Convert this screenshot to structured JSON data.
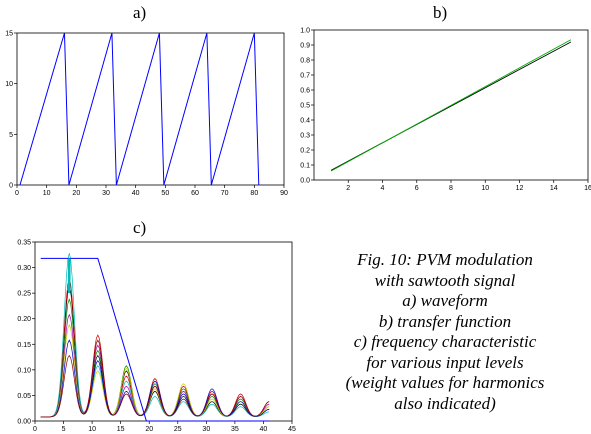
{
  "labels": {
    "a": "a)",
    "b": "b)",
    "c": "c)"
  },
  "caption": [
    "Fig. 10: PVM modulation",
    "with sawtooth signal",
    "a) waveform",
    "b) transfer function",
    "c) frequency characteristic",
    "for various input levels",
    "(weight values for harmonics",
    "also indicated)"
  ],
  "chart_data": [
    {
      "id": "a",
      "type": "line",
      "title": "a)",
      "xlim": [
        0,
        90
      ],
      "ylim": [
        0,
        15
      ],
      "xticks": [
        0,
        10,
        20,
        30,
        40,
        50,
        60,
        70,
        80,
        90
      ],
      "yticks": [
        0,
        5,
        10,
        15
      ],
      "series": [
        {
          "color": "#0000ff",
          "x": [
            1,
            16,
            17.5,
            32,
            33.5,
            48,
            49.5,
            64,
            65.5,
            80,
            81.5
          ],
          "y": [
            0,
            15,
            0,
            15,
            0,
            15,
            0,
            15,
            0,
            15,
            0
          ]
        }
      ]
    },
    {
      "id": "b",
      "type": "line",
      "title": "b)",
      "xlim": [
        0,
        16
      ],
      "ylim": [
        0,
        1.0
      ],
      "xticks": [
        2,
        4,
        6,
        8,
        10,
        12,
        14,
        16
      ],
      "xticklabels": [
        "2",
        "4",
        "6",
        "8",
        "10",
        "12",
        "14",
        "16"
      ],
      "yticks": [
        0,
        0.1,
        0.2,
        0.3,
        0.4,
        0.5,
        0.6,
        0.7,
        0.8,
        0.9,
        1.0
      ],
      "yticklabels": [
        "0.0",
        "0.1",
        "0.2",
        "0.3",
        "0.4",
        "0.5",
        "0.6",
        "0.7",
        "0.8",
        "0.9",
        "1.0"
      ],
      "series": [
        {
          "color": "#000000",
          "x": [
            1,
            15
          ],
          "y": [
            0.065,
            0.92
          ]
        },
        {
          "color": "#00aa00",
          "x": [
            1,
            15
          ],
          "y": [
            0.06,
            0.935
          ]
        }
      ]
    },
    {
      "id": "c",
      "type": "line",
      "title": "c)",
      "xlim": [
        0,
        45
      ],
      "ylim": [
        0,
        0.35
      ],
      "xticks": [
        0,
        5,
        10,
        15,
        20,
        25,
        30,
        35,
        40,
        45
      ],
      "yticks": [
        0,
        0.05,
        0.1,
        0.15,
        0.2,
        0.25,
        0.3,
        0.35
      ],
      "yticklabels": [
        "0.00",
        "0.05",
        "0.10",
        "0.15",
        "0.20",
        "0.25",
        "0.30",
        "0.35"
      ],
      "weights": {
        "color": "#0000ff",
        "x": [
          1,
          6,
          11,
          16,
          21,
          26,
          31,
          36,
          41
        ],
        "y": [
          0.318,
          0.318,
          0.318,
          0.106,
          0.0,
          0.0,
          0.0,
          0.0,
          0.0
        ],
        "draw_x": [
          1,
          11,
          19.5,
          41
        ],
        "draw_y": [
          0.318,
          0.318,
          0.0,
          0.0
        ]
      },
      "harmonic_centers": [
        6,
        11,
        16,
        21,
        26,
        31,
        36,
        41
      ],
      "peak_series": [
        {
          "color": "#000000",
          "peaks": [
            0.255,
            0.12,
            0.09,
            0.05,
            0.04,
            0.03,
            0.025,
            0.015
          ]
        },
        {
          "color": "#cc0000",
          "peaks": [
            0.27,
            0.16,
            0.08,
            0.075,
            0.06,
            0.05,
            0.045,
            0.03
          ]
        },
        {
          "color": "#008800",
          "peaks": [
            0.23,
            0.13,
            0.1,
            0.065,
            0.055,
            0.04,
            0.035,
            0.02
          ]
        },
        {
          "color": "#00bbbb",
          "peaks": [
            0.32,
            0.1,
            0.07,
            0.04,
            0.03,
            0.025,
            0.02,
            0.01
          ]
        },
        {
          "color": "#aa00aa",
          "peaks": [
            0.2,
            0.14,
            0.06,
            0.06,
            0.05,
            0.045,
            0.04,
            0.025
          ]
        },
        {
          "color": "#cccc00",
          "peaks": [
            0.18,
            0.09,
            0.095,
            0.055,
            0.065,
            0.035,
            0.03,
            0.02
          ]
        },
        {
          "color": "#0000cc",
          "peaks": [
            0.15,
            0.11,
            0.05,
            0.07,
            0.045,
            0.055,
            0.03,
            0.015
          ]
        },
        {
          "color": "#880000",
          "peaks": [
            0.12,
            0.15,
            0.045,
            0.06,
            0.035,
            0.045,
            0.04,
            0.03
          ]
        }
      ]
    }
  ]
}
